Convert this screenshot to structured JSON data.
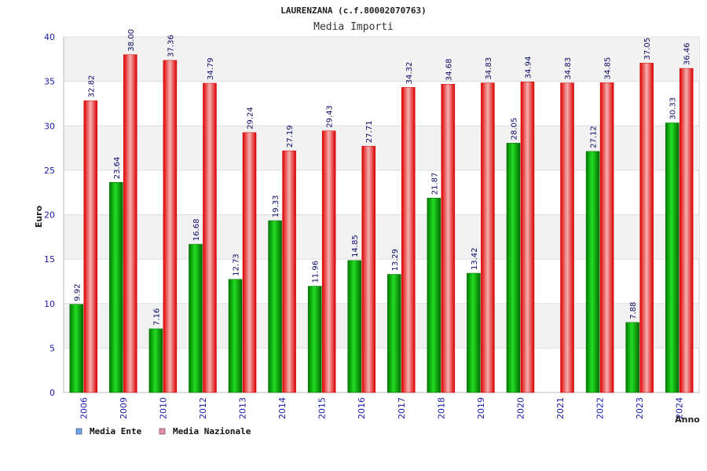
{
  "chart_data": {
    "type": "bar",
    "title": "LAURENZANA (c.f.80002070763)",
    "subtitle": "Media Importi",
    "ylabel": "Euro",
    "xlabel": "Anno",
    "ylim": [
      0,
      40
    ],
    "yticks": [
      0,
      5,
      10,
      15,
      20,
      25,
      30,
      35,
      40
    ],
    "categories": [
      "2006",
      "2009",
      "2010",
      "2012",
      "2013",
      "2014",
      "2015",
      "2016",
      "2017",
      "2018",
      "2019",
      "2020",
      "2021",
      "2022",
      "2023",
      "2024"
    ],
    "series": [
      {
        "name": "Media Ente",
        "color": "#009900",
        "values": [
          9.92,
          23.64,
          7.16,
          16.68,
          12.73,
          19.33,
          11.96,
          14.85,
          13.29,
          21.87,
          13.42,
          28.05,
          null,
          27.12,
          7.88,
          30.33
        ],
        "labels": [
          "9.92",
          "23.64",
          "7.16",
          "16.68",
          "12.73",
          "19.33",
          "11.96",
          "14.85",
          "13.29",
          "21.87",
          "13.42",
          "28.05",
          "",
          "27.12",
          "7.88",
          "30.33"
        ]
      },
      {
        "name": "Media Nazionale",
        "color": "#ee1111",
        "values": [
          32.82,
          38.0,
          37.36,
          34.79,
          29.24,
          27.19,
          29.43,
          27.71,
          34.32,
          34.68,
          34.83,
          34.94,
          34.83,
          34.85,
          37.05,
          36.46
        ],
        "labels": [
          "32.82",
          "38.00",
          "37.36",
          "34.79",
          "29.24",
          "27.19",
          "29.43",
          "27.71",
          "34.32",
          "34.68",
          "34.83",
          "34.94",
          "34.83",
          "34.85",
          "37.05",
          "36.46"
        ]
      }
    ],
    "legend": [
      {
        "label": "Media Ente",
        "color": "#6fa8e8"
      },
      {
        "label": "Media Nazionale",
        "color": "#e88ab0"
      }
    ],
    "legend_position": "bottom-left",
    "grid": true
  }
}
